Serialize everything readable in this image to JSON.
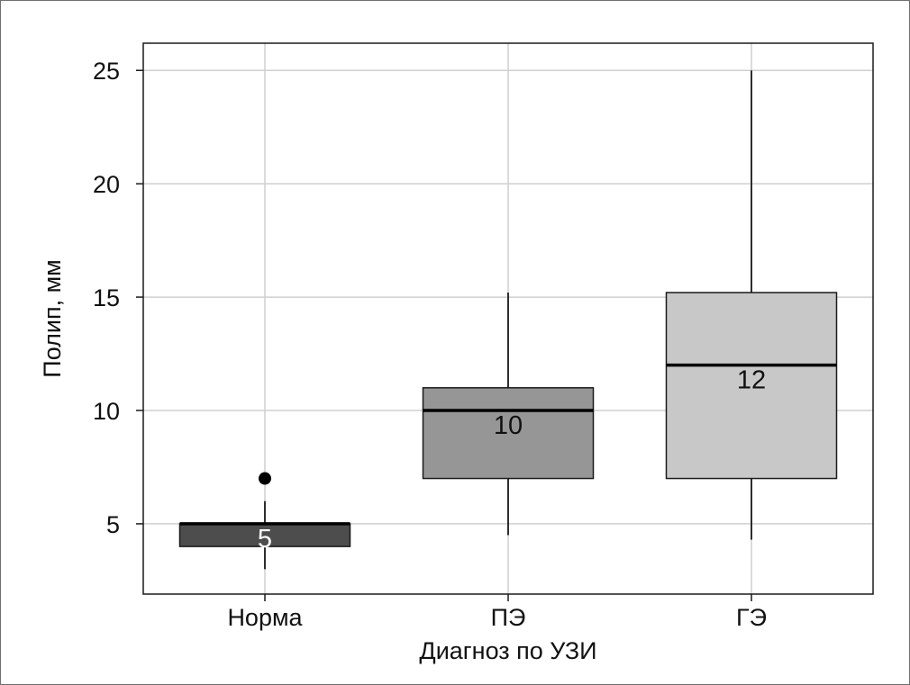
{
  "chart_data": {
    "type": "boxplot",
    "xlabel": "Диагноз по УЗИ",
    "ylabel": "Полип, мм",
    "ylim": [
      1.9,
      26.2
    ],
    "yticks": [
      5,
      10,
      15,
      20,
      25
    ],
    "categories": [
      "Норма",
      "ПЭ",
      "ГЭ"
    ],
    "grid": true,
    "boxes": [
      {
        "category": "Норма",
        "min": 3,
        "q1": 4,
        "median": 5,
        "q3": 5,
        "max": 6,
        "outliers": [
          7
        ],
        "median_label": "5",
        "fill": "#4d4d4d",
        "label_color": "#ffffff"
      },
      {
        "category": "ПЭ",
        "min": 4.5,
        "q1": 7,
        "median": 10,
        "q3": 11,
        "max": 15.2,
        "outliers": [],
        "median_label": "10",
        "fill": "#969696",
        "label_color": "#111111"
      },
      {
        "category": "ГЭ",
        "min": 4.3,
        "q1": 7,
        "median": 12,
        "q3": 15.2,
        "max": 25,
        "outliers": [],
        "median_label": "12",
        "fill": "#c8c8c8",
        "label_color": "#111111"
      }
    ]
  }
}
